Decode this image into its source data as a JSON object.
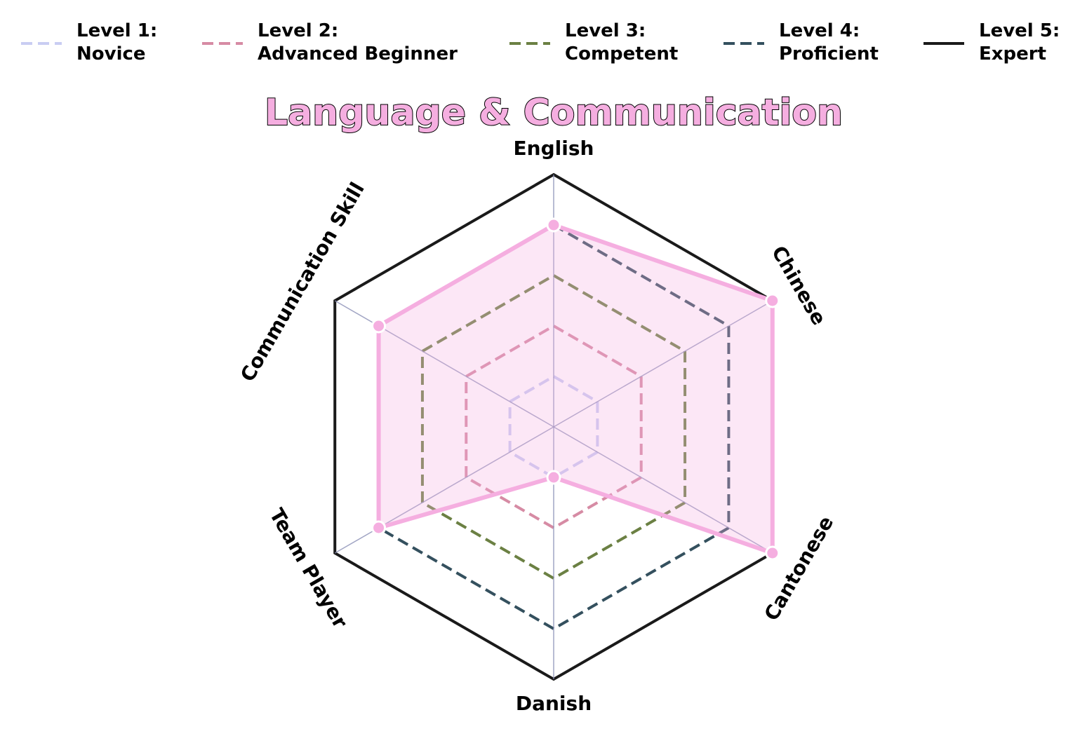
{
  "chart_data": {
    "type": "radar",
    "title": "Language & Communication",
    "axes": [
      "English",
      "Chinese",
      "Cantonese",
      "Danish",
      "Team Player",
      "Communication Skill"
    ],
    "range": [
      0,
      5
    ],
    "levels": [
      {
        "level": 1,
        "line1": "Level 1:",
        "line2": "Novice",
        "color": "#c9cdf2",
        "style": "dashed"
      },
      {
        "level": 2,
        "line1": "Level 2:",
        "line2": "Advanced Beginner",
        "color": "#d68ba4",
        "style": "dashed"
      },
      {
        "level": 3,
        "line1": "Level 3:",
        "line2": "Competent",
        "color": "#6b8043",
        "style": "dashed"
      },
      {
        "level": 4,
        "line1": "Level 4:",
        "line2": "Proficient",
        "color": "#34505e",
        "style": "dashed"
      },
      {
        "level": 5,
        "line1": "Level 5:",
        "line2": "Expert",
        "color": "#1a1a1a",
        "style": "solid"
      }
    ],
    "series": [
      {
        "values": [
          4,
          5,
          5,
          1,
          4,
          4
        ],
        "color": "#f5aee0"
      }
    ],
    "grid": false
  }
}
